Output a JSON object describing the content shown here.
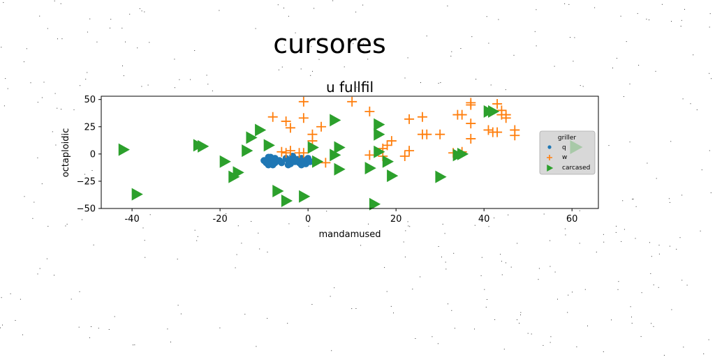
{
  "figure": {
    "suptitle": "cursores"
  },
  "chart_data": {
    "type": "scatter",
    "title": "u fullfil",
    "xlabel": "mandamused",
    "ylabel": "octaploidic",
    "xlim": [
      -47,
      66
    ],
    "ylim": [
      -50,
      53
    ],
    "xticks": [
      -40,
      -20,
      0,
      20,
      40,
      60
    ],
    "yticks": [
      -50,
      -25,
      0,
      25,
      50
    ],
    "grid": false,
    "legend": {
      "title": "griller",
      "placement": "right"
    },
    "series": [
      {
        "name": "q",
        "marker": "circle",
        "color": "#1f77b4",
        "points": [
          [
            -9,
            -3
          ],
          [
            -8.5,
            -6
          ],
          [
            -9.5,
            -8
          ],
          [
            -8,
            -10
          ],
          [
            -7.5,
            -4
          ],
          [
            -9,
            -6
          ],
          [
            -8,
            -7
          ],
          [
            -10,
            -6
          ],
          [
            -7.5,
            -8
          ],
          [
            -8.5,
            -3
          ],
          [
            -9,
            -10
          ],
          [
            -6.5,
            -6
          ],
          [
            -5,
            -4
          ],
          [
            -4.5,
            -6
          ],
          [
            -4,
            -9
          ],
          [
            -3.5,
            -4
          ],
          [
            -3,
            -7
          ],
          [
            -2.5,
            -5
          ],
          [
            -2,
            -8
          ],
          [
            -1.5,
            -4
          ],
          [
            -1,
            -6
          ],
          [
            -0.5,
            -9
          ],
          [
            0,
            -4
          ],
          [
            0.5,
            -7
          ],
          [
            -4.5,
            -10
          ],
          [
            -6,
            -8
          ],
          [
            -3.5,
            -2
          ],
          [
            -1.5,
            -10
          ]
        ]
      },
      {
        "name": "w",
        "marker": "plus",
        "color": "#ff7f0e",
        "points": [
          [
            -8,
            34
          ],
          [
            -5,
            30
          ],
          [
            -4,
            24
          ],
          [
            -6,
            2
          ],
          [
            -5,
            1
          ],
          [
            -4,
            3
          ],
          [
            -2,
            1
          ],
          [
            -1,
            1
          ],
          [
            -1,
            33
          ],
          [
            -1,
            48
          ],
          [
            1,
            18
          ],
          [
            1,
            12
          ],
          [
            3,
            25
          ],
          [
            4,
            -8
          ],
          [
            10,
            48
          ],
          [
            14,
            -1
          ],
          [
            14,
            39
          ],
          [
            17,
            5
          ],
          [
            17,
            -2
          ],
          [
            18,
            8
          ],
          [
            19,
            12
          ],
          [
            22,
            -2
          ],
          [
            23,
            3
          ],
          [
            23,
            32
          ],
          [
            26,
            18
          ],
          [
            26,
            34
          ],
          [
            27,
            18
          ],
          [
            30,
            18
          ],
          [
            33,
            1
          ],
          [
            34,
            36
          ],
          [
            35,
            36
          ],
          [
            35,
            2
          ],
          [
            37,
            14
          ],
          [
            37,
            28
          ],
          [
            37,
            45
          ],
          [
            37,
            47
          ],
          [
            41,
            22
          ],
          [
            42,
            20
          ],
          [
            43,
            20
          ],
          [
            43,
            46
          ],
          [
            44,
            40
          ],
          [
            44,
            36
          ],
          [
            45,
            33
          ],
          [
            45,
            36
          ],
          [
            47,
            17
          ],
          [
            47,
            22
          ]
        ]
      },
      {
        "name": "carcased",
        "marker": "triangle-right",
        "color": "#2ca02c",
        "points": [
          [
            -42,
            4
          ],
          [
            -39,
            -37
          ],
          [
            -25,
            8
          ],
          [
            -24,
            7
          ],
          [
            -19,
            -7
          ],
          [
            -17,
            -21
          ],
          [
            -16,
            -17
          ],
          [
            -14,
            3
          ],
          [
            -13,
            15
          ],
          [
            -11,
            22
          ],
          [
            -9,
            8
          ],
          [
            -7,
            -34
          ],
          [
            -5,
            -43
          ],
          [
            -1,
            -39
          ],
          [
            1,
            6
          ],
          [
            2,
            -7
          ],
          [
            6,
            -1
          ],
          [
            6,
            31
          ],
          [
            7,
            6
          ],
          [
            7,
            -14
          ],
          [
            14,
            -13
          ],
          [
            15,
            -46
          ],
          [
            16,
            2
          ],
          [
            16,
            27
          ],
          [
            16,
            18
          ],
          [
            18,
            -7
          ],
          [
            19,
            -20
          ],
          [
            30,
            -21
          ],
          [
            34,
            -1
          ],
          [
            35,
            0
          ],
          [
            41,
            39
          ],
          [
            42,
            39
          ]
        ]
      }
    ]
  }
}
